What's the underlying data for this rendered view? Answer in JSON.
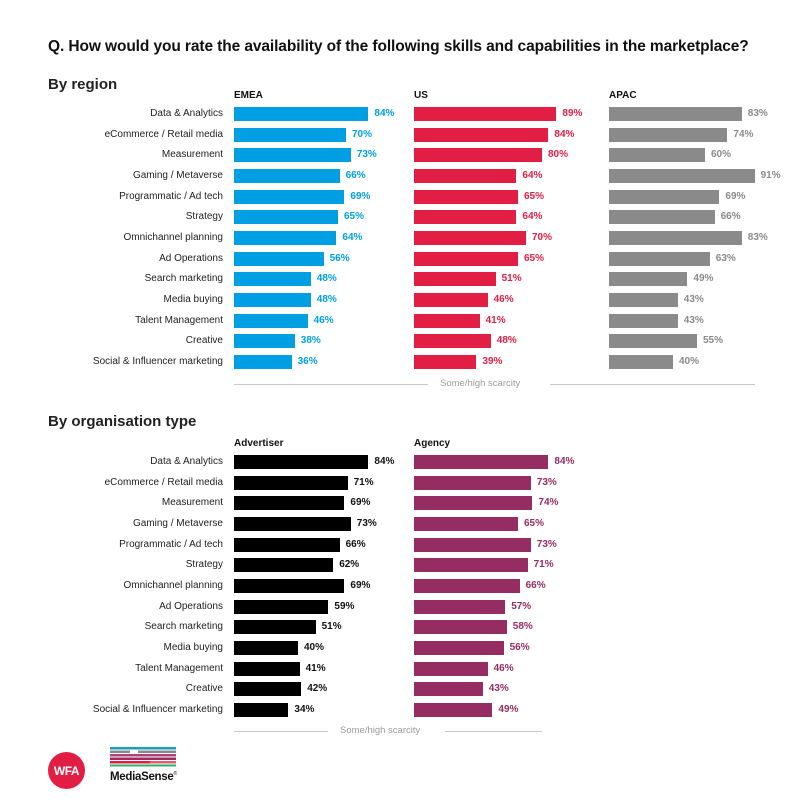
{
  "question": "Q. How would you rate the availability of the following skills and capabilities in the marketplace?",
  "sections": {
    "region": {
      "title": "By region"
    },
    "org": {
      "title": "By organisation type"
    }
  },
  "axis_label": "Some/high scarcity",
  "logos": {
    "wfa": "WFA",
    "mediasense": "MediaSense",
    "mediasense_mark": "®"
  },
  "chart_data": [
    {
      "type": "bar",
      "orientation": "horizontal",
      "title": "By region",
      "xlabel": "Some/high scarcity",
      "ylabel": "",
      "xlim": [
        0,
        100
      ],
      "unit": "%",
      "grid": false,
      "categories": [
        "Data & Analytics",
        "eCommerce / Retail media",
        "Measurement",
        "Gaming / Metaverse",
        "Programmatic / Ad tech",
        "Strategy",
        "Omnichannel planning",
        "Ad Operations",
        "Search marketing",
        "Media buying",
        "Talent Management",
        "Creative",
        "Social & Influencer marketing"
      ],
      "series": [
        {
          "name": "EMEA",
          "color": "#009fe3",
          "values": [
            84,
            70,
            73,
            66,
            69,
            65,
            64,
            56,
            48,
            48,
            46,
            38,
            36
          ]
        },
        {
          "name": "US",
          "color": "#e31e45",
          "values": [
            89,
            84,
            80,
            64,
            65,
            64,
            70,
            65,
            51,
            46,
            41,
            48,
            39
          ]
        },
        {
          "name": "APAC",
          "color": "#8a8a8a",
          "values": [
            83,
            74,
            60,
            91,
            69,
            66,
            83,
            63,
            49,
            43,
            43,
            55,
            40
          ]
        }
      ]
    },
    {
      "type": "bar",
      "orientation": "horizontal",
      "title": "By organisation type",
      "xlabel": "Some/high scarcity",
      "ylabel": "",
      "xlim": [
        0,
        100
      ],
      "unit": "%",
      "grid": false,
      "categories": [
        "Data & Analytics",
        "eCommerce / Retail media",
        "Measurement",
        "Gaming / Metaverse",
        "Programmatic / Ad tech",
        "Strategy",
        "Omnichannel planning",
        "Ad Operations",
        "Search marketing",
        "Media buying",
        "Talent Management",
        "Creative",
        "Social & Influencer marketing"
      ],
      "series": [
        {
          "name": "Advertiser",
          "color": "#000000",
          "label_color": "#111111",
          "values": [
            84,
            71,
            69,
            73,
            66,
            62,
            69,
            59,
            51,
            40,
            41,
            42,
            34
          ]
        },
        {
          "name": "Agency",
          "color": "#962d62",
          "values": [
            84,
            73,
            74,
            65,
            73,
            71,
            66,
            57,
            58,
            56,
            46,
            43,
            49
          ]
        }
      ]
    }
  ]
}
